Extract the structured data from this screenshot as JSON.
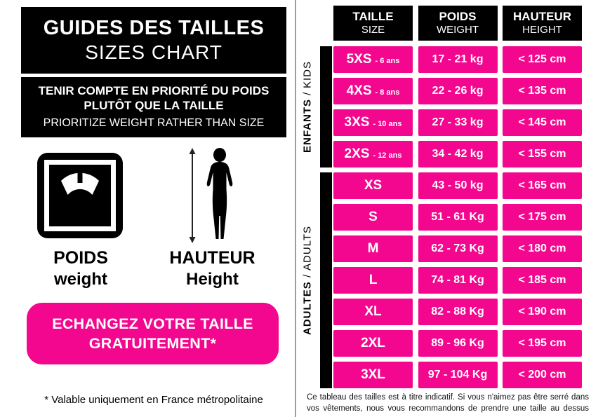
{
  "colors": {
    "pink": "#F2078E",
    "black": "#000000",
    "divider_gray": "#9E9E9E"
  },
  "left_panel": {
    "title_fr": "GUIDES DES TAILLES",
    "title_en": "SIZES CHART",
    "notice_fr_line1": "TENIR COMPTE EN PRIORITÉ DU POIDS",
    "notice_fr_line2": "PLUTÔT QUE LA TAILLE",
    "notice_en": "PRIORITIZE WEIGHT RATHER THAN SIZE",
    "icons": {
      "weight": "bathroom-scale-icon",
      "height": "person-height-icon"
    },
    "weight_label_fr": "POIDS",
    "weight_label_en": "weight",
    "height_label_fr": "HAUTEUR",
    "height_label_en": "Height",
    "exchange_banner_line1": "ECHANGEZ VOTRE TAILLE",
    "exchange_banner_line2": "GRATUITEMENT*",
    "footnote": "* Valable uniquement en France métropolitaine"
  },
  "size_table": {
    "headers": [
      {
        "fr": "TAILLE",
        "en": "SIZE"
      },
      {
        "fr": "POIDS",
        "en": "WEIGHT"
      },
      {
        "fr": "HAUTEUR",
        "en": "HEIGHT"
      }
    ],
    "groups": [
      {
        "label_fr": "ENFANTS",
        "label_en": "KIDS",
        "rows": [
          {
            "size": "5XS",
            "age": "- 6 ans",
            "weight": "17 - 21 kg",
            "height": "< 125 cm"
          },
          {
            "size": "4XS",
            "age": "- 8 ans",
            "weight": "22 - 26 kg",
            "height": "< 135 cm"
          },
          {
            "size": "3XS",
            "age": "- 10 ans",
            "weight": "27 - 33 kg",
            "height": "< 145 cm"
          },
          {
            "size": "2XS",
            "age": "- 12 ans",
            "weight": "34 - 42 kg",
            "height": "< 155 cm"
          }
        ]
      },
      {
        "label_fr": "ADULTES",
        "label_en": "ADULTS",
        "rows": [
          {
            "size": "XS",
            "age": "",
            "weight": "43 - 50 kg",
            "height": "< 165 cm"
          },
          {
            "size": "S",
            "age": "",
            "weight": "51 - 61 Kg",
            "height": "< 175 cm"
          },
          {
            "size": "M",
            "age": "",
            "weight": "62 - 73 Kg",
            "height": "< 180 cm"
          },
          {
            "size": "L",
            "age": "",
            "weight": "74 - 81 Kg",
            "height": "< 185 cm"
          },
          {
            "size": "XL",
            "age": "",
            "weight": "82 - 88 Kg",
            "height": "< 190 cm"
          },
          {
            "size": "2XL",
            "age": "",
            "weight": "89 - 96 Kg",
            "height": "< 195 cm"
          },
          {
            "size": "3XL",
            "age": "",
            "weight": "97 - 104 Kg",
            "height": "< 200 cm"
          }
        ]
      }
    ],
    "disclaimer": "Ce tableau des tailles est à titre indicatif. Si vous n'aimez pas être serré dans vos vêtements, nous vous recommandons de prendre une taille au dessus"
  }
}
